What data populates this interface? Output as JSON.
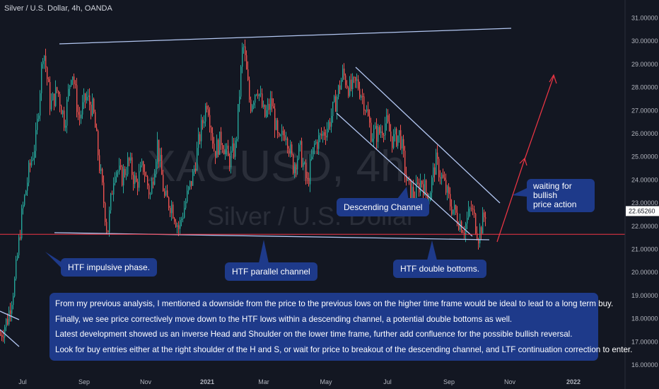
{
  "header": {
    "title": "Silver / U.S. Dollar, 4h, OANDA"
  },
  "watermark": {
    "symbol": "XAGUSD, 4h",
    "name": "Silver / U.S. Dollar"
  },
  "colors": {
    "background": "#131722",
    "candle_up": "#26a69a",
    "candle_down": "#ef5350",
    "trendline": "#b3c7f2",
    "support_line": "#f23645",
    "projection_arrow": "#f23645",
    "note_bg": "#1e3a8a",
    "price_tag_bg": "#ffffff"
  },
  "notes": {
    "impulsive": "HTF impulsive phase.",
    "parallel": "HTF parallel channel",
    "double_bottoms": "HTF double bottoms.",
    "descending": "Descending Channel",
    "waiting_line1": "waiting for bullish",
    "waiting_line2": "price action"
  },
  "analysis": {
    "p1": "From my previous analysis, I mentioned a downside from the price to the previous lows on the higher time frame would be ideal to lead to a long term buy.",
    "p2": "Finally, we see price correctively move down to the HTF lows within a descending channel, a potential double bottoms as well.",
    "p3": "Latest development showed us an inverse Head and Shoulder on the lower time frame, further add confluence for the possible bullish reversal.",
    "p4": "Look for buy entries either at the right shoulder of the H and S, or wait for price to breakout of the descending channel, and LTF continuation correction to enter."
  },
  "chart_data": {
    "type": "candlestick",
    "symbol": "Silver / U.S. Dollar",
    "interval": "4h",
    "current_price": "22.65260",
    "support_level": 21.65,
    "y_ticks": [
      "31.00000",
      "30.00000",
      "29.00000",
      "28.00000",
      "27.00000",
      "26.00000",
      "25.00000",
      "24.00000",
      "23.00000",
      "22.00000",
      "21.00000",
      "20.00000",
      "19.00000",
      "18.00000",
      "17.00000",
      "16.00000"
    ],
    "x_ticks": [
      "Jul",
      "Sep",
      "Nov",
      "2021",
      "Mar",
      "May",
      "Jul",
      "Sep",
      "Nov",
      "2022"
    ],
    "ylim": [
      15.9,
      31.6
    ],
    "price_path": [
      [
        "Jun",
        17.3
      ],
      [
        "Jul",
        18.0
      ],
      [
        "Jul",
        19.6
      ],
      [
        "Jul",
        22.5
      ],
      [
        "Jul",
        24.4
      ],
      [
        "Aug",
        25.8
      ],
      [
        "Aug",
        29.8
      ],
      [
        "Aug",
        27.2
      ],
      [
        "Aug",
        27.9
      ],
      [
        "Aug",
        26.5
      ],
      [
        "Sep",
        28.9
      ],
      [
        "Sep",
        26.6
      ],
      [
        "Sep",
        27.6
      ],
      [
        "Sep",
        27.0
      ],
      [
        "Sep",
        24.3
      ],
      [
        "Sep",
        21.7
      ],
      [
        "Oct",
        24.6
      ],
      [
        "Oct",
        24.1
      ],
      [
        "Oct",
        24.8
      ],
      [
        "Oct",
        23.8
      ],
      [
        "Oct",
        24.6
      ],
      [
        "Nov",
        23.3
      ],
      [
        "Nov",
        25.6
      ],
      [
        "Nov",
        23.2
      ],
      [
        "Nov",
        22.9
      ],
      [
        "Nov",
        21.9
      ],
      [
        "Dec",
        23.1
      ],
      [
        "Dec",
        24.2
      ],
      [
        "Dec",
        26.0
      ],
      [
        "Dec",
        27.5
      ],
      [
        "Jan",
        25.2
      ],
      [
        "Jan",
        25.8
      ],
      [
        "Jan",
        24.8
      ],
      [
        "Jan",
        25.5
      ],
      [
        "Feb",
        30.0
      ],
      [
        "Feb",
        27.2
      ],
      [
        "Feb",
        28.1
      ],
      [
        "Feb",
        26.7
      ],
      [
        "Feb",
        27.4
      ],
      [
        "Mar",
        25.5
      ],
      [
        "Mar",
        26.2
      ],
      [
        "Mar",
        24.6
      ],
      [
        "Mar",
        25.3
      ],
      [
        "Apr",
        23.8
      ],
      [
        "Apr",
        25.5
      ],
      [
        "Apr",
        25.9
      ],
      [
        "Apr",
        26.4
      ],
      [
        "May",
        27.4
      ],
      [
        "May",
        28.6
      ],
      [
        "May",
        27.9
      ],
      [
        "Jun",
        28.2
      ],
      [
        "Jun",
        27.4
      ],
      [
        "Jun",
        26.0
      ],
      [
        "Jun",
        26.0
      ],
      [
        "Jul",
        26.5
      ],
      [
        "Jul",
        25.7
      ],
      [
        "Jul",
        26.0
      ],
      [
        "Aug",
        23.8
      ],
      [
        "Aug",
        23.3
      ],
      [
        "Aug",
        24.0
      ],
      [
        "Aug",
        23.2
      ],
      [
        "Sep",
        24.8
      ],
      [
        "Sep",
        24.0
      ],
      [
        "Sep",
        23.0
      ],
      [
        "Sep",
        22.4
      ],
      [
        "Oct",
        21.9
      ],
      [
        "Oct",
        22.8
      ],
      [
        "Oct",
        21.6
      ],
      [
        "Oct",
        22.6
      ]
    ]
  }
}
